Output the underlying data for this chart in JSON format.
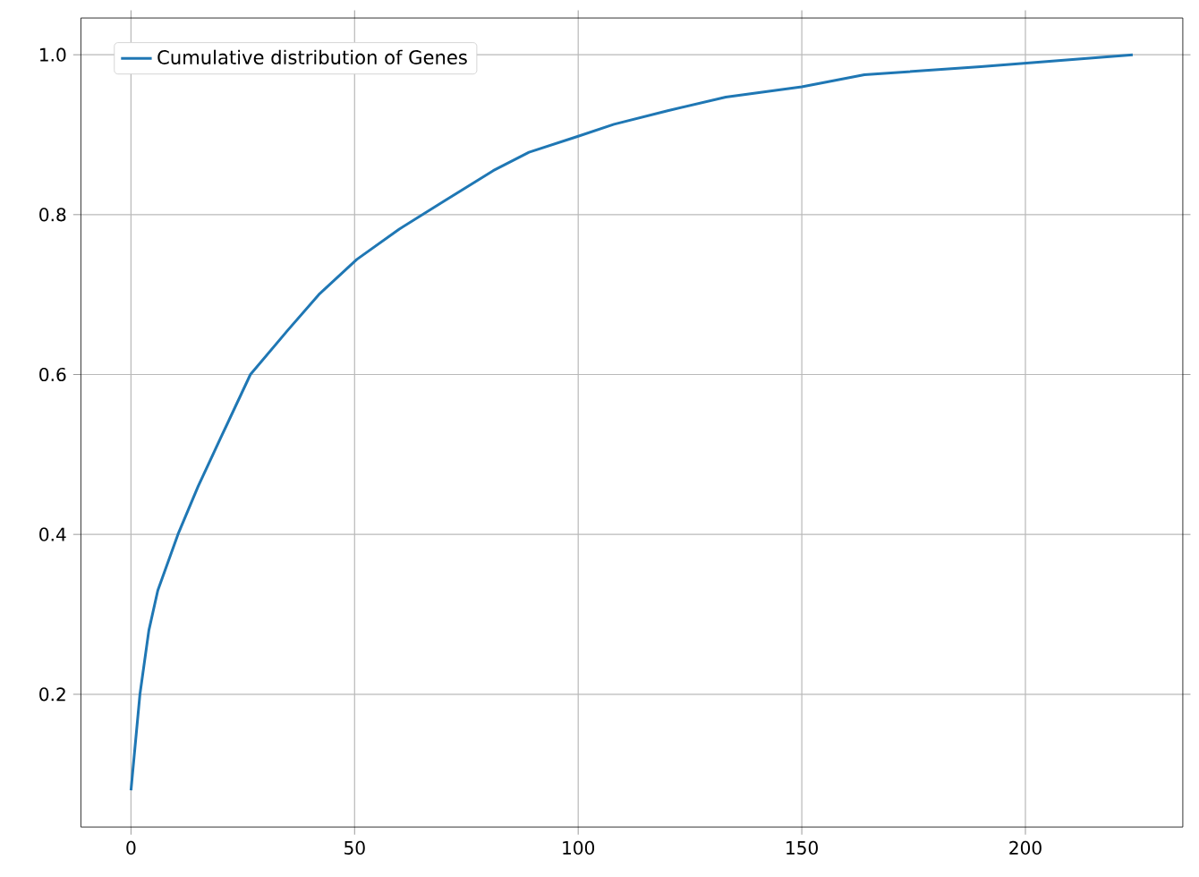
{
  "chart_data": {
    "type": "line",
    "xlim": [
      -11.2,
      235.2
    ],
    "ylim": [
      0.034,
      1.046
    ],
    "xticks": [
      0,
      50,
      100,
      150,
      200
    ],
    "yticks": [
      0.2,
      0.4,
      0.6,
      0.8,
      {
        "value": 1.0,
        "label": "1.0"
      }
    ],
    "grid": true,
    "legend": "top left",
    "series": [
      {
        "name": "Cumulative distribution of Genes",
        "color": "#1f77b4",
        "x": [
          0,
          2,
          4,
          6,
          10.5,
          15,
          20,
          26.7,
          35,
          42,
          50.5,
          60,
          70,
          81,
          89,
          100,
          108,
          120,
          133,
          150,
          164,
          190,
          224
        ],
        "values": [
          0.08,
          0.2,
          0.28,
          0.33,
          0.4,
          0.46,
          0.52,
          0.6,
          0.655,
          0.7,
          0.744,
          0.782,
          0.817,
          0.855,
          0.878,
          0.898,
          0.913,
          0.93,
          0.947,
          0.96,
          0.975,
          0.985,
          1.0
        ]
      }
    ]
  }
}
